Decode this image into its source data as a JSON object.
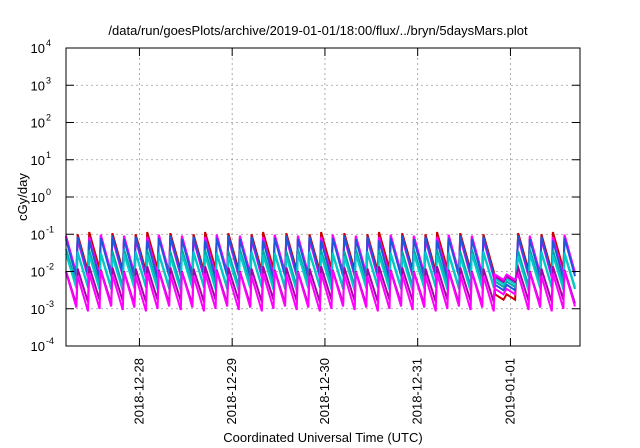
{
  "chart_data": {
    "type": "line",
    "title": "/data/run/goesPlots/archive/2019-01-01/18:00/flux/../bryn/5daysMars.plot",
    "xlabel": "Coordinated Universal Time (UTC)",
    "ylabel": "cGy/day",
    "yscale": "log",
    "ylim": [
      0.0001,
      10000
    ],
    "xlim": [
      "2018-12-27T05:00",
      "2019-01-01T18:00"
    ],
    "grid": true,
    "legend": "none",
    "x_ticks": [
      {
        "date": "2018-12-28T00:00",
        "label": "2018-12-28"
      },
      {
        "date": "2018-12-29T00:00",
        "label": "2018-12-29"
      },
      {
        "date": "2018-12-30T00:00",
        "label": "2018-12-30"
      },
      {
        "date": "2018-12-31T00:00",
        "label": "2018-12-31"
      },
      {
        "date": "2019-01-01T00:00",
        "label": "2019-01-01"
      }
    ],
    "y_ticks": [
      {
        "value": 0.0001,
        "base": "10",
        "exp": "-4"
      },
      {
        "value": 0.001,
        "base": "10",
        "exp": "-3"
      },
      {
        "value": 0.01,
        "base": "10",
        "exp": "-2"
      },
      {
        "value": 0.1,
        "base": "10",
        "exp": "-1"
      },
      {
        "value": 1,
        "base": "10",
        "exp": "0"
      },
      {
        "value": 10,
        "base": "10",
        "exp": "1"
      },
      {
        "value": 100,
        "base": "10",
        "exp": "2"
      },
      {
        "value": 1000,
        "base": "10",
        "exp": "3"
      },
      {
        "value": 10000,
        "base": "10",
        "exp": "4"
      }
    ],
    "pattern": {
      "description_free": true,
      "peak_hours": [
        0.0,
        3.0,
        6.0,
        9.0,
        12.0,
        15.0,
        18.0,
        21.0,
        24.0,
        27.0,
        30.0,
        33.0,
        36.0,
        39.0,
        42.0,
        45.0,
        48.0,
        51.0,
        54.0,
        57.0,
        60.0,
        63.0,
        66.0,
        69.0,
        72.0,
        75.0,
        78.0,
        81.0,
        84.0,
        87.0,
        90.0,
        93.0,
        96.0,
        99.0,
        102.0,
        105.0,
        108.0,
        111.0,
        114.0,
        117.0,
        120.0,
        123.0,
        126.0,
        129.0
      ],
      "gap_hours": [
        108.5,
        114.5
      ],
      "gap_level": 0.0035
    },
    "series": [
      {
        "color": "#cc0000",
        "peak": 0.1,
        "trough": 0.01
      },
      {
        "color": "#ff00ff",
        "peak": 0.085,
        "trough": 0.008
      },
      {
        "color": "#2255dd",
        "peak": 0.08,
        "trough": 0.0075
      },
      {
        "color": "#00aaaa",
        "peak": 0.035,
        "trough": 0.004
      },
      {
        "color": "#00cccc",
        "peak": 0.03,
        "trough": 0.0035
      },
      {
        "color": "#aa00aa",
        "peak": 0.012,
        "trough": 0.0015
      },
      {
        "color": "#ff00ff",
        "peak": 0.009,
        "trough": 0.001
      }
    ]
  }
}
